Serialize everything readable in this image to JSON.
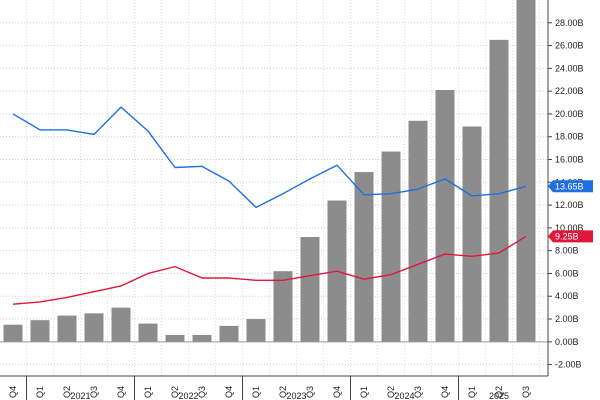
{
  "chart_data": {
    "type": "bar",
    "title": "",
    "xlabel": "",
    "ylabel": "",
    "categories": [
      "Q4",
      "Q1",
      "Q2",
      "Q3",
      "Q4",
      "Q1",
      "Q2",
      "Q3",
      "Q4",
      "Q1",
      "Q2",
      "Q3",
      "Q4",
      "Q1",
      "Q2",
      "Q3",
      "Q4",
      "Q1",
      "Q2",
      "Q3"
    ],
    "year_labels": [
      {
        "label": "2021",
        "start": 1,
        "end": 4
      },
      {
        "label": "2022",
        "start": 5,
        "end": 8
      },
      {
        "label": "2023",
        "start": 9,
        "end": 12
      },
      {
        "label": "2024",
        "start": 13,
        "end": 16
      },
      {
        "label": "2025",
        "start": 17,
        "end": 19
      }
    ],
    "ylim": [
      -3,
      30
    ],
    "yticks": [
      -2,
      0,
      2,
      4,
      6,
      8,
      10,
      12,
      14,
      16,
      18,
      20,
      22,
      24,
      26,
      28
    ],
    "ytick_labels": [
      "-2.00B",
      "0.00B",
      "2.00B",
      "4.00B",
      "6.00B",
      "8.00B",
      "10.00B",
      "12.00B",
      "14.00B",
      "16.00B",
      "18.00B",
      "20.00B",
      "22.00B",
      "24.00B",
      "26.00B",
      "28.00B"
    ],
    "grid": true,
    "series": [
      {
        "type": "bar",
        "color": "#8c8c8c",
        "values": [
          1.5,
          1.9,
          2.3,
          2.5,
          3.0,
          1.6,
          0.6,
          0.6,
          1.4,
          2.0,
          6.2,
          9.2,
          12.4,
          14.9,
          16.7,
          19.4,
          22.1,
          18.9,
          26.5,
          30.0
        ]
      },
      {
        "type": "line",
        "color": "#1f6fe0",
        "values": [
          20.0,
          18.6,
          18.6,
          18.2,
          20.6,
          18.5,
          15.3,
          15.4,
          14.1,
          11.8,
          13.0,
          14.3,
          15.5,
          12.9,
          13.0,
          13.4,
          14.3,
          12.8,
          13.0,
          13.65
        ],
        "last_label": "13.65B"
      },
      {
        "type": "line",
        "color": "#e0163c",
        "values": [
          3.3,
          3.5,
          3.9,
          4.4,
          4.9,
          6.0,
          6.6,
          5.6,
          5.6,
          5.4,
          5.4,
          5.8,
          6.2,
          5.5,
          5.9,
          6.8,
          7.7,
          7.5,
          7.8,
          9.25
        ],
        "last_label": "9.25B"
      }
    ]
  }
}
